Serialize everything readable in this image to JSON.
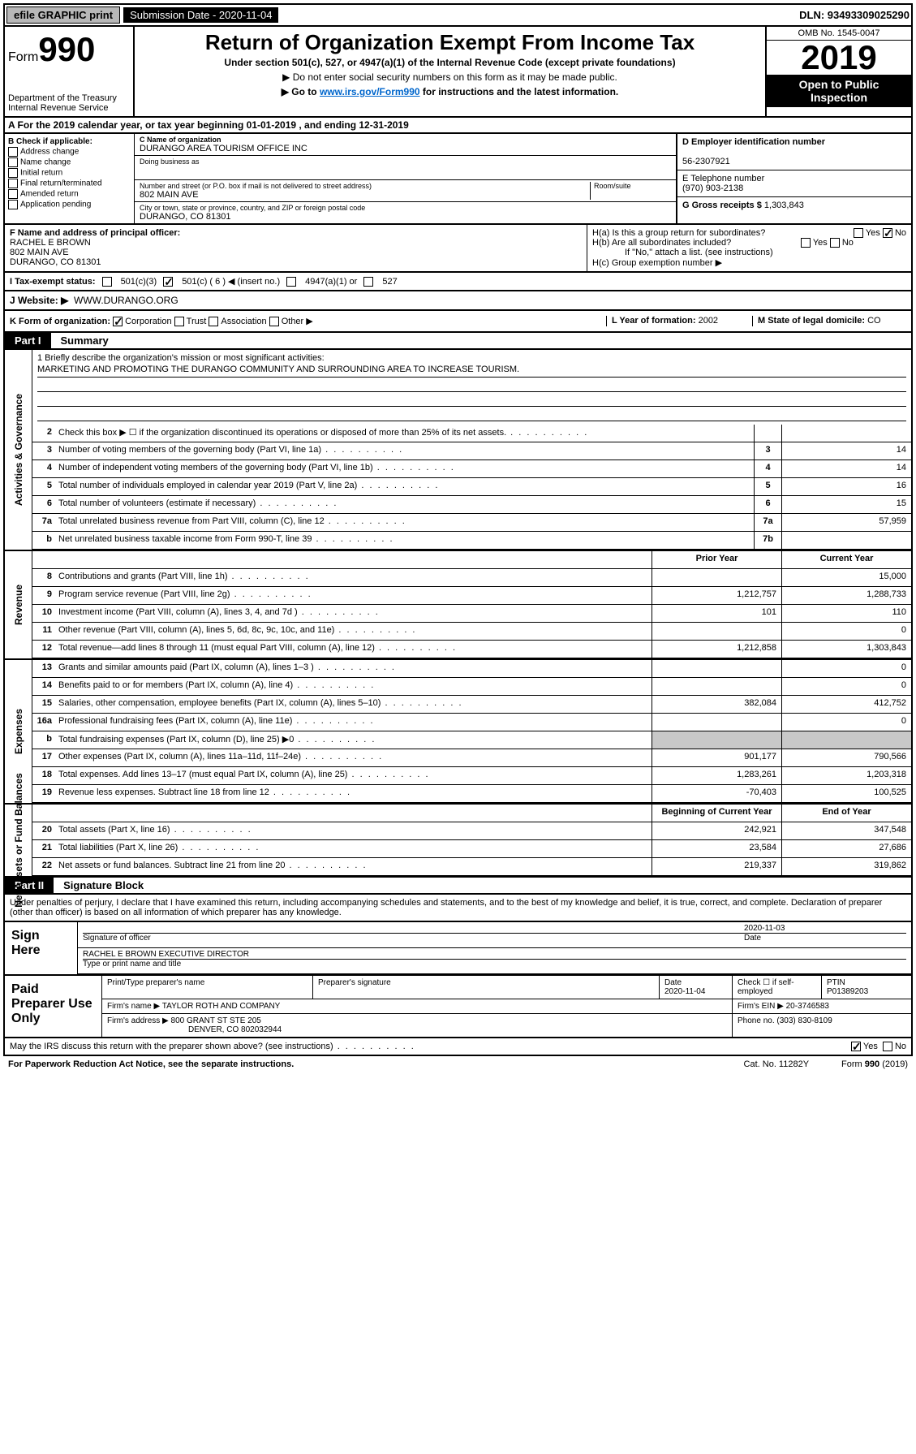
{
  "topbar": {
    "efile": "efile GRAPHIC print",
    "submission_label": "Submission Date - 2020-11-04",
    "dln": "DLN: 93493309025290"
  },
  "header": {
    "form_label": "Form",
    "form_number": "990",
    "dept": "Department of the Treasury\nInternal Revenue Service",
    "title": "Return of Organization Exempt From Income Tax",
    "subtitle": "Under section 501(c), 527, or 4947(a)(1) of the Internal Revenue Code (except private foundations)",
    "note1": "▶ Do not enter social security numbers on this form as it may be made public.",
    "note2_pre": "▶ Go to ",
    "note2_link": "www.irs.gov/Form990",
    "note2_post": " for instructions and the latest information.",
    "omb": "OMB No. 1545-0047",
    "year": "2019",
    "open_public": "Open to Public Inspection"
  },
  "row_a": "A For the 2019 calendar year, or tax year beginning 01-01-2019  , and ending 12-31-2019",
  "section_b": {
    "label": "B Check if applicable:",
    "items": [
      "Address change",
      "Name change",
      "Initial return",
      "Final return/terminated",
      "Amended return",
      "Application pending"
    ]
  },
  "section_c": {
    "name_lbl": "C Name of organization",
    "name": "DURANGO AREA TOURISM OFFICE INC",
    "dba_lbl": "Doing business as",
    "dba": "",
    "addr_lbl": "Number and street (or P.O. box if mail is not delivered to street address)",
    "room_lbl": "Room/suite",
    "addr": "802 MAIN AVE",
    "city_lbl": "City or town, state or province, country, and ZIP or foreign postal code",
    "city": "DURANGO, CO  81301"
  },
  "section_d": {
    "ein_lbl": "D Employer identification number",
    "ein": "56-2307921",
    "phone_lbl": "E Telephone number",
    "phone": "(970) 903-2138",
    "gross_lbl": "G Gross receipts $",
    "gross": "1,303,843"
  },
  "section_f": {
    "lbl": "F  Name and address of principal officer:",
    "name": "RACHEL E BROWN",
    "addr1": "802 MAIN AVE",
    "addr2": "DURANGO, CO  81301"
  },
  "section_h": {
    "ha": "H(a)  Is this a group return for subordinates?",
    "hb": "H(b)  Are all subordinates included?",
    "hb_note": "If \"No,\" attach a list. (see instructions)",
    "hc": "H(c)  Group exemption number ▶"
  },
  "tax_status": {
    "lbl": "I  Tax-exempt status:",
    "opt1": "501(c)(3)",
    "opt2": "501(c) ( 6 ) ◀ (insert no.)",
    "opt3": "4947(a)(1) or",
    "opt4": "527"
  },
  "website": {
    "lbl": "J  Website: ▶",
    "val": "WWW.DURANGO.ORG"
  },
  "row_k": {
    "k_lbl": "K Form of organization:",
    "k_opts": [
      "Corporation",
      "Trust",
      "Association",
      "Other ▶"
    ],
    "l_lbl": "L Year of formation:",
    "l_val": "2002",
    "m_lbl": "M State of legal domicile:",
    "m_val": "CO"
  },
  "part1": {
    "num": "Part I",
    "title": "Summary"
  },
  "part2": {
    "num": "Part II",
    "title": "Signature Block"
  },
  "mission": {
    "q1": "1  Briefly describe the organization's mission or most significant activities:",
    "text": "MARKETING AND PROMOTING THE DURANGO COMMUNITY AND SURROUNDING AREA TO INCREASE TOURISM."
  },
  "gov_rows": [
    {
      "n": "2",
      "d": "Check this box ▶ ☐ if the organization discontinued its operations or disposed of more than 25% of its net assets.",
      "box": "",
      "v": ""
    },
    {
      "n": "3",
      "d": "Number of voting members of the governing body (Part VI, line 1a)",
      "box": "3",
      "v": "14"
    },
    {
      "n": "4",
      "d": "Number of independent voting members of the governing body (Part VI, line 1b)",
      "box": "4",
      "v": "14"
    },
    {
      "n": "5",
      "d": "Total number of individuals employed in calendar year 2019 (Part V, line 2a)",
      "box": "5",
      "v": "16"
    },
    {
      "n": "6",
      "d": "Total number of volunteers (estimate if necessary)",
      "box": "6",
      "v": "15"
    },
    {
      "n": "7a",
      "d": "Total unrelated business revenue from Part VIII, column (C), line 12",
      "box": "7a",
      "v": "57,959"
    },
    {
      "n": "b",
      "d": "Net unrelated business taxable income from Form 990-T, line 39",
      "box": "7b",
      "v": ""
    }
  ],
  "rev_hdr": {
    "prior": "Prior Year",
    "current": "Current Year"
  },
  "rev_rows": [
    {
      "n": "8",
      "d": "Contributions and grants (Part VIII, line 1h)",
      "p": "",
      "c": "15,000"
    },
    {
      "n": "9",
      "d": "Program service revenue (Part VIII, line 2g)",
      "p": "1,212,757",
      "c": "1,288,733"
    },
    {
      "n": "10",
      "d": "Investment income (Part VIII, column (A), lines 3, 4, and 7d )",
      "p": "101",
      "c": "110"
    },
    {
      "n": "11",
      "d": "Other revenue (Part VIII, column (A), lines 5, 6d, 8c, 9c, 10c, and 11e)",
      "p": "",
      "c": "0"
    },
    {
      "n": "12",
      "d": "Total revenue—add lines 8 through 11 (must equal Part VIII, column (A), line 12)",
      "p": "1,212,858",
      "c": "1,303,843"
    }
  ],
  "exp_rows": [
    {
      "n": "13",
      "d": "Grants and similar amounts paid (Part IX, column (A), lines 1–3 )",
      "p": "",
      "c": "0"
    },
    {
      "n": "14",
      "d": "Benefits paid to or for members (Part IX, column (A), line 4)",
      "p": "",
      "c": "0"
    },
    {
      "n": "15",
      "d": "Salaries, other compensation, employee benefits (Part IX, column (A), lines 5–10)",
      "p": "382,084",
      "c": "412,752"
    },
    {
      "n": "16a",
      "d": "Professional fundraising fees (Part IX, column (A), line 11e)",
      "p": "",
      "c": "0"
    },
    {
      "n": "b",
      "d": "Total fundraising expenses (Part IX, column (D), line 25) ▶0",
      "p": "shade",
      "c": "shade"
    },
    {
      "n": "17",
      "d": "Other expenses (Part IX, column (A), lines 11a–11d, 11f–24e)",
      "p": "901,177",
      "c": "790,566"
    },
    {
      "n": "18",
      "d": "Total expenses. Add lines 13–17 (must equal Part IX, column (A), line 25)",
      "p": "1,283,261",
      "c": "1,203,318"
    },
    {
      "n": "19",
      "d": "Revenue less expenses. Subtract line 18 from line 12",
      "p": "-70,403",
      "c": "100,525"
    }
  ],
  "net_hdr": {
    "begin": "Beginning of Current Year",
    "end": "End of Year"
  },
  "net_rows": [
    {
      "n": "20",
      "d": "Total assets (Part X, line 16)",
      "p": "242,921",
      "c": "347,548"
    },
    {
      "n": "21",
      "d": "Total liabilities (Part X, line 26)",
      "p": "23,584",
      "c": "27,686"
    },
    {
      "n": "22",
      "d": "Net assets or fund balances. Subtract line 21 from line 20",
      "p": "219,337",
      "c": "319,862"
    }
  ],
  "sig_text": "Under penalties of perjury, I declare that I have examined this return, including accompanying schedules and statements, and to the best of my knowledge and belief, it is true, correct, and complete. Declaration of preparer (other than officer) is based on all information of which preparer has any knowledge.",
  "sign": {
    "here": "Sign Here",
    "sig_lbl": "Signature of officer",
    "date": "2020-11-03",
    "date_lbl": "Date",
    "name": "RACHEL E BROWN  EXECUTIVE DIRECTOR",
    "name_lbl": "Type or print name and title"
  },
  "prep": {
    "title": "Paid Preparer Use Only",
    "h1": "Print/Type preparer's name",
    "h2": "Preparer's signature",
    "h3": "Date",
    "h3v": "2020-11-04",
    "h4": "Check ☐ if self-employed",
    "h5": "PTIN",
    "h5v": "P01389203",
    "firm_lbl": "Firm's name    ▶",
    "firm": "TAYLOR ROTH AND COMPANY",
    "ein_lbl": "Firm's EIN ▶",
    "ein": "20-3746583",
    "addr_lbl": "Firm's address ▶",
    "addr1": "800 GRANT ST STE 205",
    "addr2": "DENVER, CO  802032944",
    "phone_lbl": "Phone no.",
    "phone": "(303) 830-8109"
  },
  "discuss": "May the IRS discuss this return with the preparer shown above? (see instructions)",
  "footer": {
    "left": "For Paperwork Reduction Act Notice, see the separate instructions.",
    "mid": "Cat. No. 11282Y",
    "right": "Form 990 (2019)"
  },
  "vlabels": {
    "gov": "Activities & Governance",
    "rev": "Revenue",
    "exp": "Expenses",
    "net": "Net Assets or Fund Balances"
  }
}
